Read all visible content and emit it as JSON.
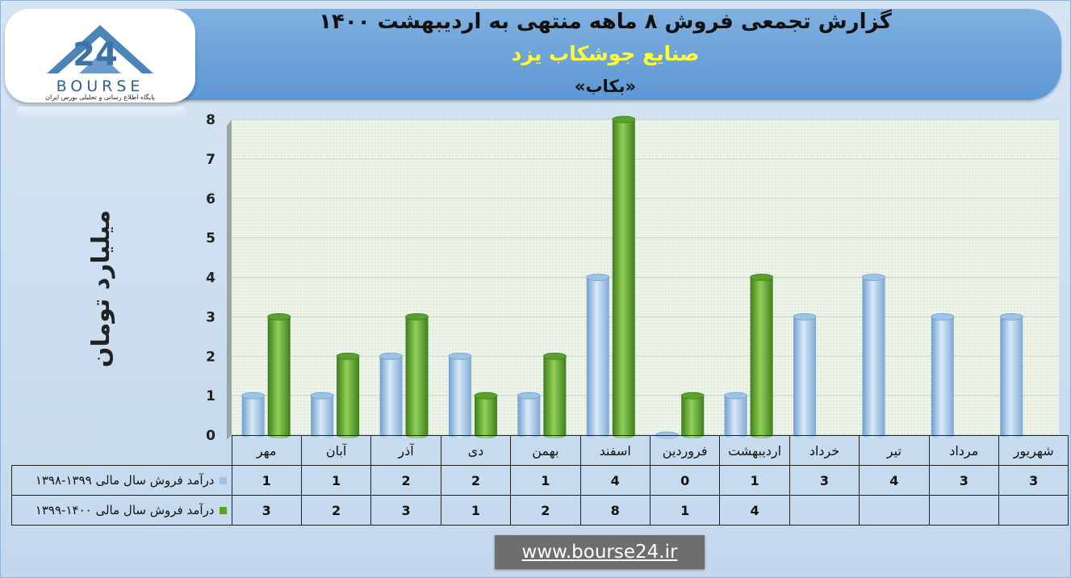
{
  "header": {
    "title": "گزارش تجمعی فروش ۸ ماهه منتهی به اردیبهشت ۱۴۰۰",
    "subtitle": "صنایع جوشکاب یزد",
    "ticker": "«بکاب»"
  },
  "logo": {
    "wordmark": "BOURSE",
    "number": "24",
    "tagline": "پایگاه اطلاع رسانی و تحلیلی بورس ایران"
  },
  "footer": {
    "website": "www.bourse24.ir"
  },
  "colors": {
    "series_1": "#9cc3e6",
    "series_2": "#5aa02c",
    "banner": "#6aa2d8",
    "subtitle": "#ffff33"
  },
  "chart_data": {
    "type": "bar",
    "ylabel": "میلیارد تومان",
    "ylim": [
      0,
      8
    ],
    "yticks": [
      "0",
      "1",
      "2",
      "3",
      "4",
      "5",
      "6",
      "7",
      "8"
    ],
    "grid": true,
    "categories": [
      "مهر",
      "آبان",
      "آذر",
      "دی",
      "بهمن",
      "اسفند",
      "فروردین",
      "اردیبهشت",
      "خرداد",
      "تیر",
      "مرداد",
      "شهریور"
    ],
    "series": [
      {
        "name": "درآمد فروش سال مالی ۱۳۹۹-۱۳۹۸",
        "values": [
          1,
          1,
          2,
          2,
          1,
          4,
          0,
          1,
          3,
          4,
          3,
          3
        ],
        "labels": [
          "1",
          "1",
          "2",
          "2",
          "1",
          "4",
          "0",
          "1",
          "3",
          "4",
          "3",
          "3"
        ]
      },
      {
        "name": "درآمد فروش سال مالی ۱۴۰۰-۱۳۹۹",
        "values": [
          3,
          2,
          3,
          1,
          2,
          8,
          1,
          4,
          null,
          null,
          null,
          null
        ],
        "labels": [
          "3",
          "2",
          "3",
          "1",
          "2",
          "8",
          "1",
          "4",
          "",
          "",
          "",
          ""
        ]
      }
    ]
  }
}
